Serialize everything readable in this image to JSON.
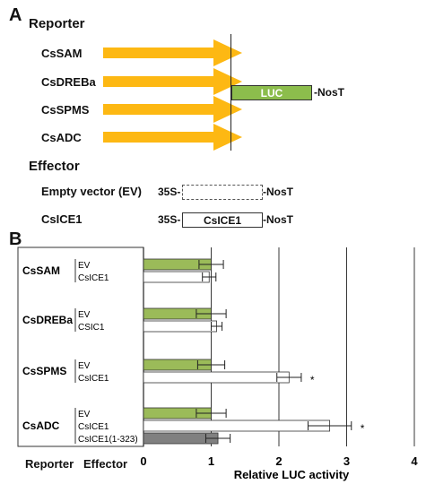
{
  "panel_a": {
    "label": "A",
    "reporter_header": "Reporter",
    "reporters": [
      "CsSAM",
      "CsDREBa",
      "CsSPMS",
      "CsADC"
    ],
    "luc_label": "LUC",
    "nost_label": "-NosT",
    "effector_header": "Effector",
    "effectors": [
      {
        "name": "Empty vector (EV)",
        "promoter": "35S-",
        "box": "",
        "term": "-NosT"
      },
      {
        "name": "CsICE1",
        "promoter": "35S-",
        "box": "CsICE1",
        "term": "-NosT"
      }
    ]
  },
  "panel_b": {
    "label": "B",
    "reporter_col": "Reporter",
    "effector_col": "Effector"
  },
  "colors": {
    "arrow": "#fdb813",
    "luc": "#8cbd4c",
    "ev_bar": "#9bbb59",
    "ice_bar": "#ffffff",
    "trunc_bar": "#808080"
  },
  "chart_data": {
    "type": "bar",
    "orientation": "horizontal",
    "xlabel": "Relative LUC activity",
    "xlim": [
      0,
      4
    ],
    "xticks": [
      "0",
      "1",
      "2",
      "3",
      "4"
    ],
    "grid": true,
    "groups": [
      {
        "reporter": "CsSAM",
        "bars": [
          {
            "effector": "EV",
            "value": 1.0,
            "err": 0.18,
            "color": "ev",
            "star": ""
          },
          {
            "effector": "CsICE1",
            "value": 0.97,
            "err": 0.1,
            "color": "ice",
            "star": ""
          }
        ]
      },
      {
        "reporter": "CsDREBa",
        "bars": [
          {
            "effector": "EV",
            "value": 1.0,
            "err": 0.22,
            "color": "ev",
            "star": ""
          },
          {
            "effector": "CSIC1",
            "value": 1.08,
            "err": 0.08,
            "color": "ice",
            "star": ""
          }
        ]
      },
      {
        "reporter": "CsSPMS",
        "bars": [
          {
            "effector": "EV",
            "value": 1.0,
            "err": 0.2,
            "color": "ev",
            "star": ""
          },
          {
            "effector": "CsICE1",
            "value": 2.15,
            "err": 0.18,
            "color": "ice",
            "star": "*"
          }
        ]
      },
      {
        "reporter": "CsADC",
        "bars": [
          {
            "effector": "EV",
            "value": 1.0,
            "err": 0.22,
            "color": "ev",
            "star": ""
          },
          {
            "effector": "CsICE1",
            "value": 2.75,
            "err": 0.32,
            "color": "ice",
            "star": "*"
          },
          {
            "effector": "CsICE1(1-323)",
            "value": 1.1,
            "err": 0.18,
            "color": "trunc",
            "star": ""
          }
        ]
      }
    ]
  }
}
